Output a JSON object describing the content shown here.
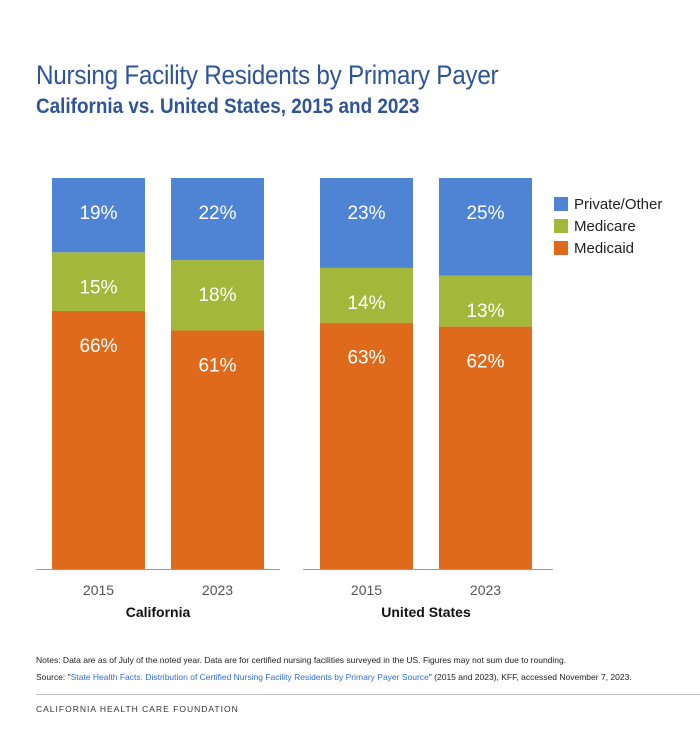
{
  "title": "Nursing Facility Residents by Primary Payer",
  "subtitle": "California vs. United States, 2015 and 2023",
  "chart_data": {
    "type": "bar",
    "stacked": true,
    "groups": [
      "California",
      "United States"
    ],
    "categories": [
      "2015",
      "2023",
      "2015",
      "2023"
    ],
    "series": [
      {
        "name": "Medicaid",
        "values": [
          66,
          61,
          63,
          62
        ],
        "labels": [
          "66%",
          "61%",
          "63%",
          "62%"
        ],
        "color": "#e06a1b"
      },
      {
        "name": "Medicare",
        "values": [
          15,
          18,
          14,
          13
        ],
        "labels": [
          "15%",
          "18%",
          "14%",
          "13%"
        ],
        "color": "#a3b83a"
      },
      {
        "name": "Private/Other",
        "values": [
          19,
          22,
          23,
          25
        ],
        "labels": [
          "19%",
          "22%",
          "23%",
          "25%"
        ],
        "color": "#4f84d4"
      }
    ],
    "ylim": [
      0,
      100
    ],
    "grid": false,
    "legend": "right"
  },
  "legend": [
    {
      "label": "Private/Other",
      "color": "#4f84d4"
    },
    {
      "label": "Medicare",
      "color": "#a3b83a"
    },
    {
      "label": "Medicaid",
      "color": "#e06a1b"
    }
  ],
  "notes": {
    "notes_text": "Notes: Data are as of July of the noted year. Data are for certified nursing facilities surveyed in the US. Figures may not sum due to rounding.",
    "source_prefix": "Source: \"",
    "source_link": "State Health Facts: Distribution of Certified Nursing Facility Residents by Primary Payer Source",
    "source_suffix": "\" (2015 and 2023), KFF, accessed November 7, 2023."
  },
  "footer": "CALIFORNIA HEALTH CARE FOUNDATION"
}
